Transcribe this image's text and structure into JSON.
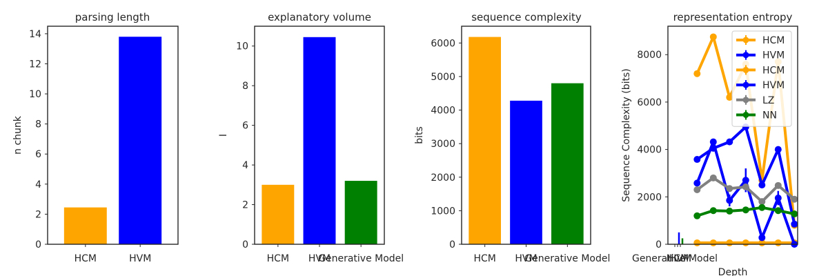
{
  "colors": {
    "orange": "#ffa500",
    "blue": "#0000ff",
    "green": "#008000",
    "gray": "#808080",
    "axis": "#262626"
  },
  "chart_data": [
    {
      "type": "bar",
      "title": "parsing length",
      "xlabel": "",
      "ylabel": "n chunk",
      "categories": [
        "HCM",
        "HVM"
      ],
      "values": [
        2.45,
        13.8
      ],
      "colors": [
        "orange",
        "blue"
      ],
      "ylim": [
        0,
        14.5
      ],
      "yticks": [
        0,
        2,
        4,
        6,
        8,
        10,
        12,
        14
      ],
      "grid": false
    },
    {
      "type": "bar",
      "title": "explanatory volume",
      "xlabel": "",
      "ylabel": "I",
      "categories": [
        "HCM",
        "HVM",
        "Generative Model"
      ],
      "values": [
        3.0,
        10.45,
        3.2
      ],
      "colors": [
        "orange",
        "blue",
        "green"
      ],
      "ylim": [
        0,
        11
      ],
      "yticks": [
        0,
        2,
        4,
        6,
        8,
        10
      ],
      "grid": false
    },
    {
      "type": "bar",
      "title": "sequence complexity",
      "xlabel": "",
      "ylabel": "bits",
      "categories": [
        "HCM",
        "HVM",
        "Generative Model"
      ],
      "values": [
        6180,
        4280,
        4800
      ],
      "colors": [
        "orange",
        "blue",
        "green"
      ],
      "ylim": [
        0,
        6500
      ],
      "yticks": [
        0,
        1000,
        2000,
        3000,
        4000,
        5000,
        6000
      ],
      "grid": false
    },
    {
      "type": "line",
      "title": "representation entropy",
      "xlabel": "Depth",
      "ylabel": "Sequence Complexity (bits)",
      "ylim": [
        0,
        9200
      ],
      "yticks": [
        0,
        2000,
        4000,
        6000,
        8000
      ],
      "xticklabels": [
        "Generative Model",
        "HCM",
        "HVM"
      ],
      "legend": "top-right",
      "grid": false,
      "series": [
        {
          "name": "HCM",
          "color": "orange",
          "x": [
            1,
            2,
            3,
            4,
            5,
            6,
            7
          ],
          "y": [
            7200,
            8750,
            6200,
            7600,
            2700,
            7700,
            800
          ],
          "err": [
            0,
            0,
            0,
            0,
            0,
            0,
            0
          ]
        },
        {
          "name": "HVM",
          "color": "blue",
          "x": [
            1,
            2,
            3,
            4,
            5,
            6,
            7
          ],
          "y": [
            3580,
            4050,
            4320,
            4950,
            2500,
            4000,
            850
          ],
          "err": [
            0,
            0,
            0,
            0,
            0,
            0,
            0
          ]
        },
        {
          "name": "HCM",
          "color": "orange",
          "x": [
            1,
            2,
            3,
            4,
            5,
            6,
            7
          ],
          "y": [
            60,
            60,
            60,
            60,
            60,
            60,
            60
          ],
          "err": [
            0,
            0,
            0,
            0,
            0,
            0,
            0
          ]
        },
        {
          "name": "HVM",
          "color": "blue",
          "x": [
            1,
            2,
            3,
            4,
            5,
            6,
            7
          ],
          "y": [
            2580,
            4320,
            1850,
            2700,
            280,
            1950,
            0
          ],
          "err": [
            0,
            0,
            250,
            500,
            0,
            300,
            0
          ]
        },
        {
          "name": "LZ",
          "color": "gray",
          "x": [
            1,
            2,
            3,
            4,
            5,
            6,
            7
          ],
          "y": [
            2300,
            2800,
            2350,
            2420,
            1800,
            2480,
            1900
          ],
          "err": [
            0,
            0,
            0,
            0,
            0,
            0,
            0
          ]
        },
        {
          "name": "NN",
          "color": "green",
          "x": [
            1,
            2,
            3,
            4,
            5,
            6,
            7
          ],
          "y": [
            1200,
            1420,
            1400,
            1450,
            1550,
            1420,
            1280
          ],
          "err": [
            0,
            0,
            0,
            0,
            0,
            0,
            0
          ]
        }
      ],
      "bars_near_zero": [
        {
          "color": "blue",
          "y": 500
        },
        {
          "color": "green",
          "y": 250
        }
      ]
    }
  ]
}
